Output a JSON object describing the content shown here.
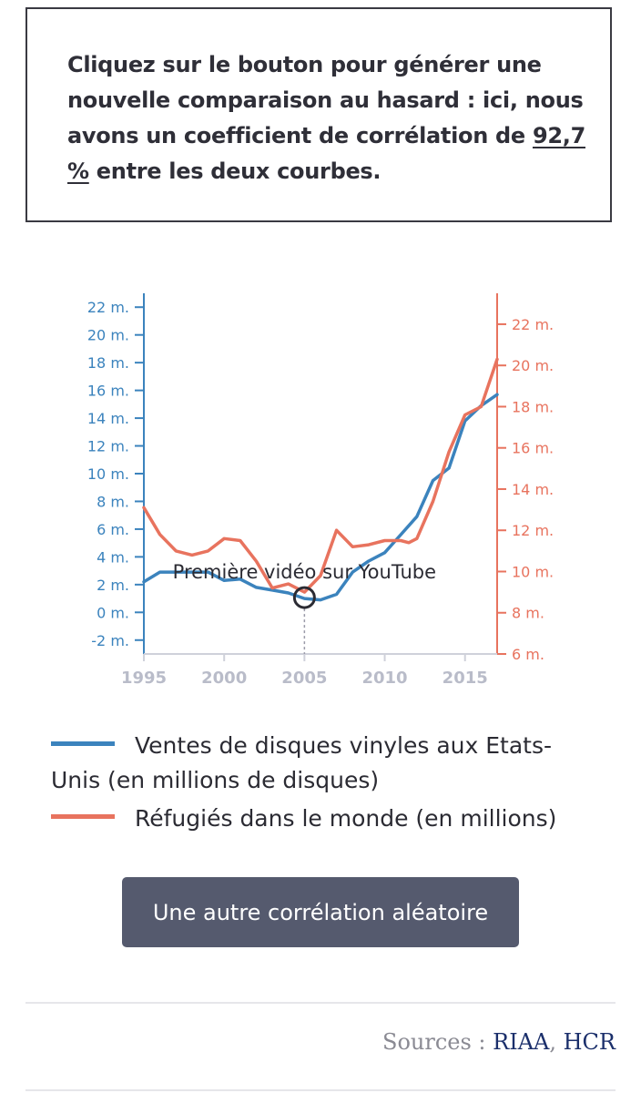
{
  "intro": {
    "text_before": "Cliquez sur le bouton pour générer une nouvelle comparaison au hasard : ici, nous avons un coefficient de corrélation de ",
    "coefficient": "92,7 %",
    "text_after": " entre les deux courbes."
  },
  "chart_data": {
    "type": "line",
    "x": [
      1995,
      1996,
      1997,
      1998,
      1999,
      2000,
      2001,
      2002,
      2003,
      2004,
      2005,
      2006,
      2007,
      2008,
      2009,
      2010,
      2011,
      2012,
      2013,
      2014,
      2015,
      2016,
      2017
    ],
    "x_ticks": [
      1995,
      2000,
      2005,
      2010,
      2015
    ],
    "x_tick_labels": [
      "1995",
      "2000",
      "2005",
      "2010",
      "2015"
    ],
    "left_axis": {
      "range": [
        -3,
        23
      ],
      "ticks": [
        -2,
        0,
        2,
        4,
        6,
        8,
        10,
        12,
        14,
        16,
        18,
        20,
        22
      ],
      "tick_labels": [
        "-2 m.",
        "0 m.",
        "2 m.",
        "4 m.",
        "6 m.",
        "8 m.",
        "10 m.",
        "12 m.",
        "14 m.",
        "16 m.",
        "18 m.",
        "20 m.",
        "22 m."
      ],
      "color": "#3b83bd"
    },
    "right_axis": {
      "range": [
        6,
        23.5
      ],
      "ticks": [
        6,
        8,
        10,
        12,
        14,
        16,
        18,
        20,
        22
      ],
      "tick_labels": [
        "6 m.",
        "8 m.",
        "10 m.",
        "12 m.",
        "14 m.",
        "16 m.",
        "18 m.",
        "20 m.",
        "22 m."
      ],
      "color": "#e8735e"
    },
    "series": [
      {
        "name": "Ventes de disques vinyles aux Etats-Unis (en millions de disques)",
        "axis": "left",
        "color": "#3b83bd",
        "values": [
          2.2,
          2.9,
          2.9,
          2.9,
          2.9,
          2.3,
          2.4,
          1.8,
          1.6,
          1.4,
          1.0,
          0.9,
          1.3,
          2.9,
          3.7,
          4.3,
          5.6,
          6.9,
          9.5,
          10.4,
          13.8,
          14.9,
          15.7
        ]
      },
      {
        "name": "Réfugiés dans le monde (en millions)",
        "axis": "right",
        "color": "#e8735e",
        "values": [
          13.1,
          11.8,
          11.0,
          10.8,
          11.0,
          11.6,
          11.5,
          10.5,
          9.2,
          9.4,
          9.0,
          9.8,
          12.0,
          11.2,
          11.3,
          11.5,
          11.5,
          11.4,
          11.6,
          13.4,
          15.8,
          17.6,
          18.0,
          20.3
        ],
        "x": [
          1995,
          1996,
          1997,
          1998,
          1999,
          2000,
          2001,
          2002,
          2003,
          2004,
          2005,
          2006,
          2007,
          2008,
          2009,
          2010,
          2011,
          2011.5,
          2012,
          2013,
          2014,
          2015,
          2016,
          2017
        ]
      }
    ],
    "annotation": {
      "x": 2005,
      "label": "Première vidéo sur YouTube"
    },
    "grid": false,
    "legend": "below"
  },
  "legend": {
    "items": [
      {
        "label": "Ventes de disques vinyles aux Etats-Unis (en millions de disques)",
        "color": "#3b83bd"
      },
      {
        "label": "Réfugiés dans le monde (en millions)",
        "color": "#e8735e"
      }
    ]
  },
  "button": {
    "label": "Une autre corrélation aléatoire"
  },
  "sources": {
    "prefix": "Sources : ",
    "links": [
      "RIAA",
      "HCR"
    ],
    "separator": ", "
  }
}
